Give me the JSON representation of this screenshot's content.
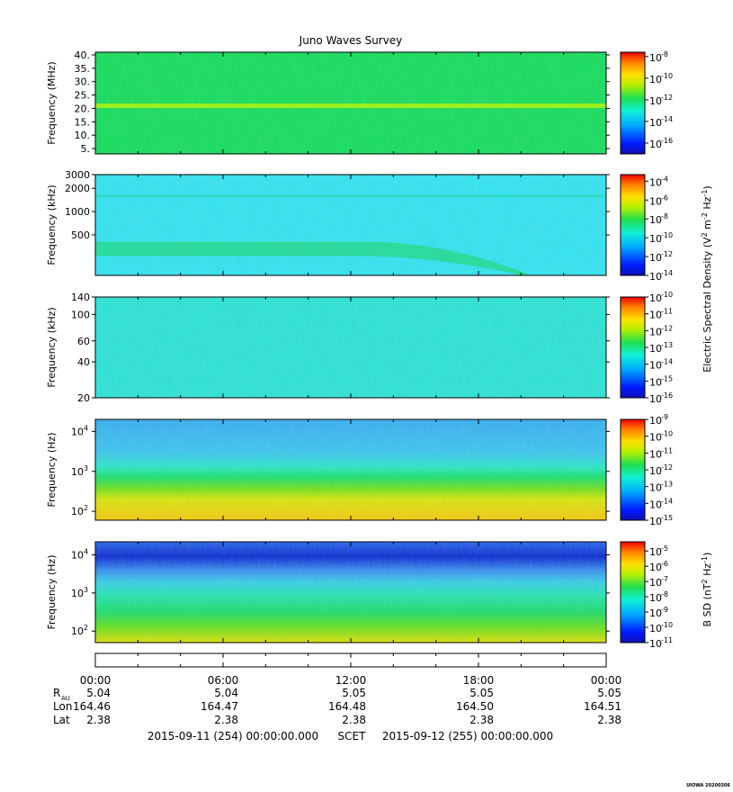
{
  "title": "Juno Waves Survey",
  "footer_tag": "UIOWA 20200306",
  "scet": {
    "start": "2015-09-11 (254) 00:00:00.000",
    "label": "SCET",
    "end": "2015-09-12 (255) 00:00:00.000"
  },
  "ephemeris": {
    "times": [
      "00:00",
      "06:00",
      "12:00",
      "18:00",
      "00:00"
    ],
    "rows": [
      {
        "label": "R",
        "sub": "AU",
        "values": [
          "5.04",
          "5.04",
          "5.05",
          "5.05",
          "5.05"
        ]
      },
      {
        "label": "Lon",
        "sub": "",
        "values": [
          "164.46",
          "164.47",
          "164.48",
          "164.50",
          "164.51"
        ]
      },
      {
        "label": "Lat",
        "sub": "",
        "values": [
          "2.38",
          "2.38",
          "2.38",
          "2.38",
          "2.38"
        ]
      }
    ]
  },
  "shared_labels": {
    "electric": "Electric Spectral Density (V",
    "magnetic": "B SD (nT"
  },
  "chart_data": [
    {
      "type": "heatmap",
      "ylabel": "Frequency (MHz)",
      "ylim": [
        3,
        41
      ],
      "yscale": "linear",
      "yticks": [
        {
          "v": 40,
          "t": "40."
        },
        {
          "v": 35,
          "t": "35."
        },
        {
          "v": 30,
          "t": "30."
        },
        {
          "v": 25,
          "t": "25."
        },
        {
          "v": 20,
          "t": "20."
        },
        {
          "v": 15,
          "t": "15."
        },
        {
          "v": 10,
          "t": "10."
        },
        {
          "v": 5,
          "t": "5."
        }
      ],
      "colorbar": {
        "min_exp": -17,
        "max_exp": -7.6,
        "labels": [
          -8,
          -10,
          -12,
          -14,
          -16
        ]
      },
      "background_color": "#18dd60",
      "features": [
        {
          "kind": "line",
          "frequency": 21,
          "color": "#9bf01a",
          "label": "narrowband line near 21 MHz"
        }
      ]
    },
    {
      "type": "heatmap",
      "ylabel": "Frequency (kHz)",
      "ylim": [
        150,
        3000
      ],
      "yscale": "log",
      "yticks": [
        {
          "v": 3000,
          "t": "3000"
        },
        {
          "v": 2000,
          "t": "2000"
        },
        {
          "v": 1000,
          "t": "1000"
        },
        {
          "v": 500,
          "t": "500"
        }
      ],
      "colorbar": {
        "min_exp": -14,
        "max_exp": -3.3,
        "labels": [
          -4,
          -6,
          -8,
          -10,
          -12,
          -14
        ]
      },
      "background_color": "#34e3f0",
      "features": [
        {
          "kind": "band",
          "frequency_kHz": 330,
          "until_hours": 13,
          "then_descends_to_kHz": 150,
          "end_hours": 20.5,
          "color": "#2ad890"
        },
        {
          "kind": "line",
          "frequency_kHz": 1600,
          "color": "#30dcc0"
        }
      ]
    },
    {
      "type": "heatmap",
      "ylabel": "Frequency (kHz)",
      "ylim": [
        20,
        140
      ],
      "yscale": "log",
      "yticks": [
        {
          "v": 140,
          "t": "140"
        },
        {
          "v": 100,
          "t": "100"
        },
        {
          "v": 60,
          "t": "60"
        },
        {
          "v": 40,
          "t": "40"
        },
        {
          "v": 20,
          "t": "20"
        }
      ],
      "colorbar": {
        "min_exp": -16,
        "max_exp": -10,
        "labels": [
          -10,
          -11,
          -12,
          -13,
          -14,
          -15,
          -16
        ]
      },
      "background_color": "#2ee3d5",
      "features": []
    },
    {
      "type": "heatmap",
      "ylabel": "Frequency (Hz)",
      "ylim": [
        60,
        20000
      ],
      "yscale": "log",
      "yticks": [
        {
          "v": 10000,
          "t": "10",
          "e": "4"
        },
        {
          "v": 1000,
          "t": "10",
          "e": "3"
        },
        {
          "v": 100,
          "t": "10",
          "e": "2"
        }
      ],
      "colorbar": {
        "min_exp": -15,
        "max_exp": -9,
        "labels": [
          -9,
          -10,
          -11,
          -12,
          -13,
          -14,
          -15
        ]
      },
      "gradient": [
        {
          "frequency_Hz": 20000,
          "color": "#3aaef0"
        },
        {
          "frequency_Hz": 3000,
          "color": "#3ec6ee"
        },
        {
          "frequency_Hz": 1300,
          "color": "#2ee6c8"
        },
        {
          "frequency_Hz": 700,
          "color": "#1ee070"
        },
        {
          "frequency_Hz": 350,
          "color": "#7ae01e"
        },
        {
          "frequency_Hz": 200,
          "color": "#d6e610"
        },
        {
          "frequency_Hz": 60,
          "color": "#f5c814"
        }
      ],
      "features": []
    },
    {
      "type": "heatmap",
      "ylabel": "Frequency (Hz)",
      "ylim": [
        50,
        22000
      ],
      "yscale": "log",
      "yticks": [
        {
          "v": 10000,
          "t": "10",
          "e": "4"
        },
        {
          "v": 1000,
          "t": "10",
          "e": "3"
        },
        {
          "v": 100,
          "t": "10",
          "e": "2"
        }
      ],
      "colorbar": {
        "min_exp": -11,
        "max_exp": -4.4,
        "labels": [
          -5,
          -6,
          -7,
          -8,
          -9,
          -10,
          -11
        ]
      },
      "gradient": [
        {
          "frequency_Hz": 22000,
          "color": "#2a68ec"
        },
        {
          "frequency_Hz": 9000,
          "color": "#0f2ed0"
        },
        {
          "frequency_Hz": 4000,
          "color": "#3a8ef0"
        },
        {
          "frequency_Hz": 2000,
          "color": "#3ccbe8"
        },
        {
          "frequency_Hz": 1000,
          "color": "#2ae2bc"
        },
        {
          "frequency_Hz": 300,
          "color": "#22dc6a"
        },
        {
          "frequency_Hz": 120,
          "color": "#6ee01e"
        },
        {
          "frequency_Hz": 50,
          "color": "#e0e010"
        }
      ],
      "features": []
    }
  ],
  "time_axis": {
    "start_hours": 0,
    "end_hours": 24,
    "label_hours": [
      0,
      6,
      12,
      18,
      24
    ]
  }
}
